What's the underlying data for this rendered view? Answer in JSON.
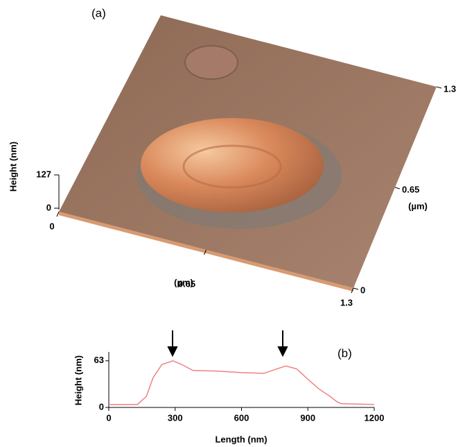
{
  "chart_data": [
    {
      "type": "surface",
      "panel_label": "(a)",
      "z_label": "Height (nm)",
      "zlim": [
        0,
        127
      ],
      "zticks": [
        0,
        127
      ],
      "xlim": [
        0,
        1.3
      ],
      "xticks": [
        0,
        0.65,
        1.3
      ],
      "x_unit": "(µm)",
      "ylim": [
        0,
        1.3
      ],
      "yticks": [
        0,
        0.65,
        1.3
      ],
      "y_unit": "(µm)"
    },
    {
      "type": "line",
      "panel_label": "(b)",
      "xlabel": "Length (nm)",
      "ylabel": "Height (nm)",
      "xlim": [
        0,
        1200
      ],
      "xticks": [
        0,
        300,
        600,
        900,
        1200
      ],
      "ylim": [
        0,
        75
      ],
      "yticks": [
        0,
        63
      ],
      "series": [
        {
          "color": "#f08080",
          "x": [
            0,
            130,
            170,
            200,
            240,
            290,
            330,
            380,
            500,
            600,
            700,
            750,
            800,
            850,
            900,
            950,
            1000,
            1030,
            1050,
            1200
          ],
          "values": [
            4,
            4,
            15,
            40,
            58,
            63,
            58,
            50,
            49,
            47,
            46,
            51,
            56,
            52,
            38,
            25,
            15,
            8,
            5,
            4
          ]
        }
      ]
    }
  ]
}
